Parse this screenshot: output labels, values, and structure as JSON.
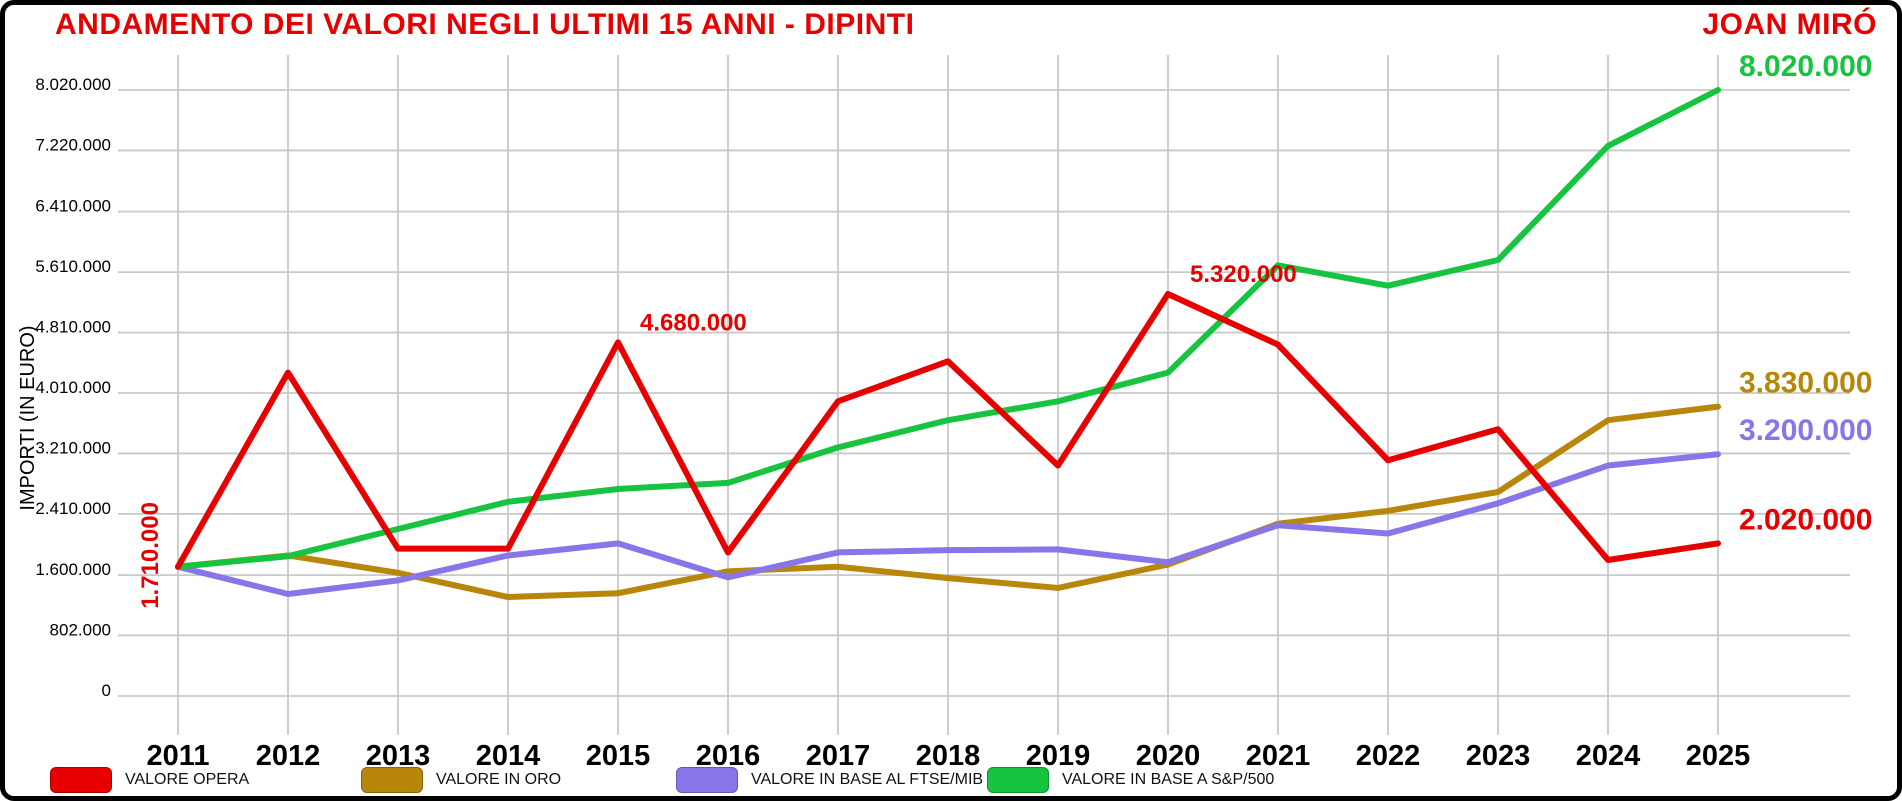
{
  "header": {
    "title": "ANDAMENTO DEI VALORI NEGLI ULTIMI 15 ANNI - DIPINTI",
    "artist": "JOAN MIRÓ",
    "title_color": "#E60000"
  },
  "chart_data": {
    "type": "line",
    "title": "ANDAMENTO DEI VALORI NEGLI ULTIMI 15 ANNI - DIPINTI",
    "subtitle": "JOAN MIRÓ",
    "ylabel": "IMPORTI (IN EURO)",
    "xlabel": "",
    "grid": true,
    "legend_position": "bottom",
    "ylim": [
      0,
      8020000
    ],
    "grid_color": "#C9C9C9",
    "categories": [
      "2011",
      "2012",
      "2013",
      "2014",
      "2015",
      "2016",
      "2017",
      "2018",
      "2019",
      "2020",
      "2021",
      "2022",
      "2023",
      "2024",
      "2025"
    ],
    "yticks": [
      {
        "label": "0",
        "value": 0
      },
      {
        "label": "802.000",
        "value": 802000
      },
      {
        "label": "1.600.000",
        "value": 1600000
      },
      {
        "label": "2.410.000",
        "value": 2410000
      },
      {
        "label": "3.210.000",
        "value": 3210000
      },
      {
        "label": "4.010.000",
        "value": 4010000
      },
      {
        "label": "4.810.000",
        "value": 4810000
      },
      {
        "label": "5.610.000",
        "value": 5610000
      },
      {
        "label": "6.410.000",
        "value": 6410000
      },
      {
        "label": "7.220.000",
        "value": 7220000
      },
      {
        "label": "8.020.000",
        "value": 8020000
      }
    ],
    "series": [
      {
        "name": "VALORE IN ORO",
        "color": "#B8860B",
        "end_label": "3.830.000",
        "values": [
          1710000,
          1860000,
          1630000,
          1310000,
          1360000,
          1650000,
          1710000,
          1560000,
          1430000,
          1740000,
          2280000,
          2450000,
          2700000,
          3650000,
          3830000
        ]
      },
      {
        "name": "VALORE IN BASE AL FTSE/MIB",
        "color": "#8876E8",
        "end_label": "3.200.000",
        "values": [
          1710000,
          1350000,
          1530000,
          1860000,
          2020000,
          1570000,
          1900000,
          1930000,
          1940000,
          1770000,
          2260000,
          2150000,
          2550000,
          3050000,
          3200000
        ]
      },
      {
        "name": "VALORE IN BASE A S&P/500",
        "color": "#17C440",
        "end_label": "8.020.000",
        "values": [
          1710000,
          1850000,
          2210000,
          2570000,
          2740000,
          2820000,
          3290000,
          3650000,
          3900000,
          4280000,
          5700000,
          5430000,
          5770000,
          7280000,
          8020000
        ]
      },
      {
        "name": "VALORE OPERA",
        "color": "#E60000",
        "end_label": "2.020.000",
        "values": [
          1710000,
          4280000,
          1950000,
          1950000,
          4680000,
          1900000,
          3900000,
          4430000,
          3050000,
          5320000,
          4650000,
          3120000,
          3530000,
          1800000,
          2020000
        ]
      }
    ],
    "legend_order": [
      "VALORE OPERA",
      "VALORE IN ORO",
      "VALORE IN BASE AL FTSE/MIB",
      "VALORE IN BASE A S&P/500"
    ],
    "annotations": [
      {
        "text": "1.710.000",
        "color": "#E60000",
        "year": "2011",
        "value": 1710000,
        "rotated": true
      },
      {
        "text": "4.680.000",
        "color": "#E60000",
        "year": "2015",
        "value": 4680000,
        "rotated": false
      },
      {
        "text": "5.320.000",
        "color": "#E60000",
        "year": "2020",
        "value": 5320000,
        "rotated": false
      }
    ]
  }
}
